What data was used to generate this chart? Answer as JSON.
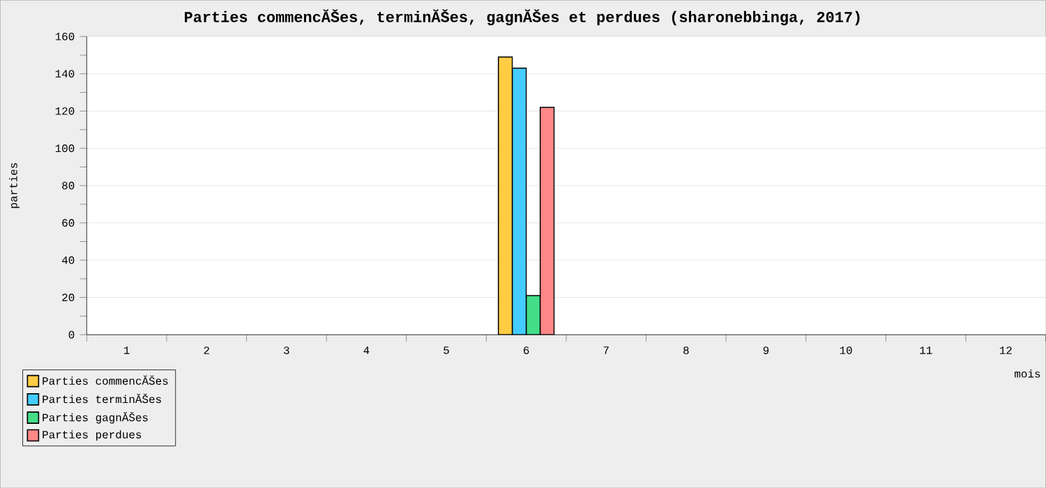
{
  "chart_data": {
    "type": "bar",
    "title": "Parties commencĂŠes, terminĂŠes, gagnĂŠes et perdues (sharonebbinga, 2017)",
    "xlabel": "mois",
    "ylabel": "parties",
    "categories": [
      "1",
      "2",
      "3",
      "4",
      "5",
      "6",
      "7",
      "8",
      "9",
      "10",
      "11",
      "12"
    ],
    "series": [
      {
        "name": "Parties commencĂŠes",
        "color": "#ffcc44",
        "values": [
          0,
          0,
          0,
          0,
          0,
          149,
          0,
          0,
          0,
          0,
          0,
          0
        ]
      },
      {
        "name": "Parties terminĂŠes",
        "color": "#44ccff",
        "values": [
          0,
          0,
          0,
          0,
          0,
          143,
          0,
          0,
          0,
          0,
          0,
          0
        ]
      },
      {
        "name": "Parties gagnĂŠes",
        "color": "#44dd88",
        "values": [
          0,
          0,
          0,
          0,
          0,
          21,
          0,
          0,
          0,
          0,
          0,
          0
        ]
      },
      {
        "name": "Parties perdues",
        "color": "#ff8888",
        "values": [
          0,
          0,
          0,
          0,
          0,
          122,
          0,
          0,
          0,
          0,
          0,
          0
        ]
      }
    ],
    "ylim": [
      0,
      160
    ],
    "yticks": [
      0,
      20,
      40,
      60,
      80,
      100,
      120,
      140,
      160
    ],
    "grid": "y",
    "legend": "bottom left"
  }
}
